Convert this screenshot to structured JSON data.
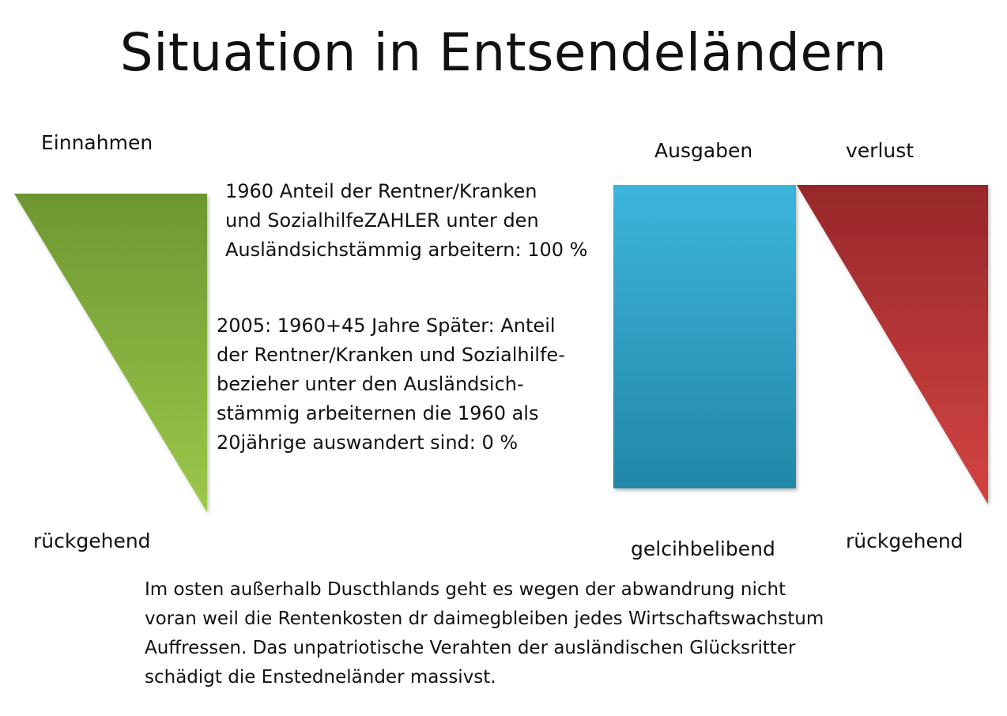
{
  "title": "Situation in Entsendeländern",
  "labels": {
    "einnahmen": "Einnahmen",
    "ausgaben": "Ausgaben",
    "verlust": "verlust",
    "rueckgehend_left": "rückgehend",
    "gleichbleibend": "gelcihbelibend",
    "rueckgehend_right": "rückgehend"
  },
  "text_1960": [
    "1960 Anteil der Rentner/Kranken",
    "und SozialhilfeZAHLER unter den",
    "Ausländsichstämmig arbeitern: 100 %"
  ],
  "text_2005": [
    "2005: 1960+45 Jahre Später: Anteil",
    "der Rentner/Kranken und Sozialhilfe-",
    "bezieher unter den Ausländsich-",
    "stämmig arbeiternen die 1960 als",
    "20jährige auswandert sind: 0 %"
  ],
  "bottom_text": [
    "Im osten außerhalb Duscthlands geht es wegen der abwandrung nicht",
    "voran weil die Rentenkosten dr daimegbleiben jedes Wirtschaftswachstum",
    "Auffressen. Das unpatriotische Verahten der ausländischen Glücksritter",
    "schädigt die Enstedneländer massivst."
  ],
  "colors": {
    "green_top": "#6e9732",
    "green_bottom": "#9cc84a",
    "blue_top": "#3cb5db",
    "blue_bottom": "#2287a8",
    "red_top": "#97282a",
    "red_bottom": "#d44442"
  }
}
